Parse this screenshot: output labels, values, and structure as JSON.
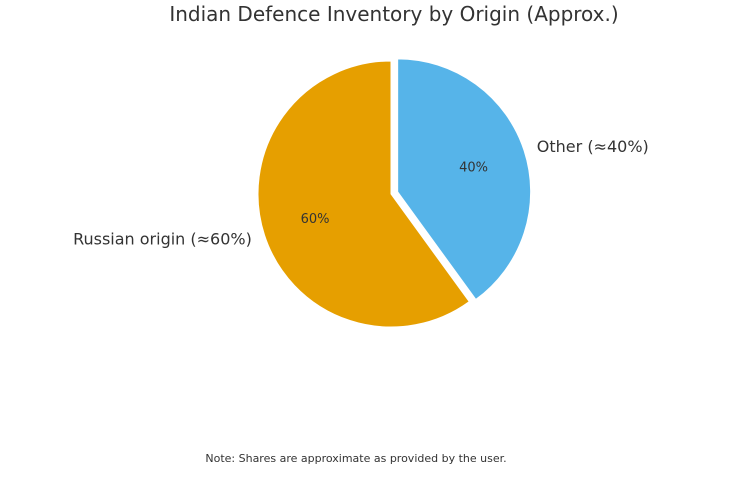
{
  "chart_data": {
    "type": "pie",
    "title": "Indian Defence Inventory by Origin (Approx.)",
    "slices": [
      {
        "label": "Other (≈40%)",
        "value": 40,
        "pct_label": "40%",
        "color": "#56B4E9",
        "exploded": true
      },
      {
        "label": "Russian origin (≈60%)",
        "value": 60,
        "pct_label": "60%",
        "color": "#E69F00",
        "exploded": false
      }
    ],
    "start": "top",
    "direction": "clockwise",
    "note": "Note: Shares are approximate as provided by the user."
  }
}
